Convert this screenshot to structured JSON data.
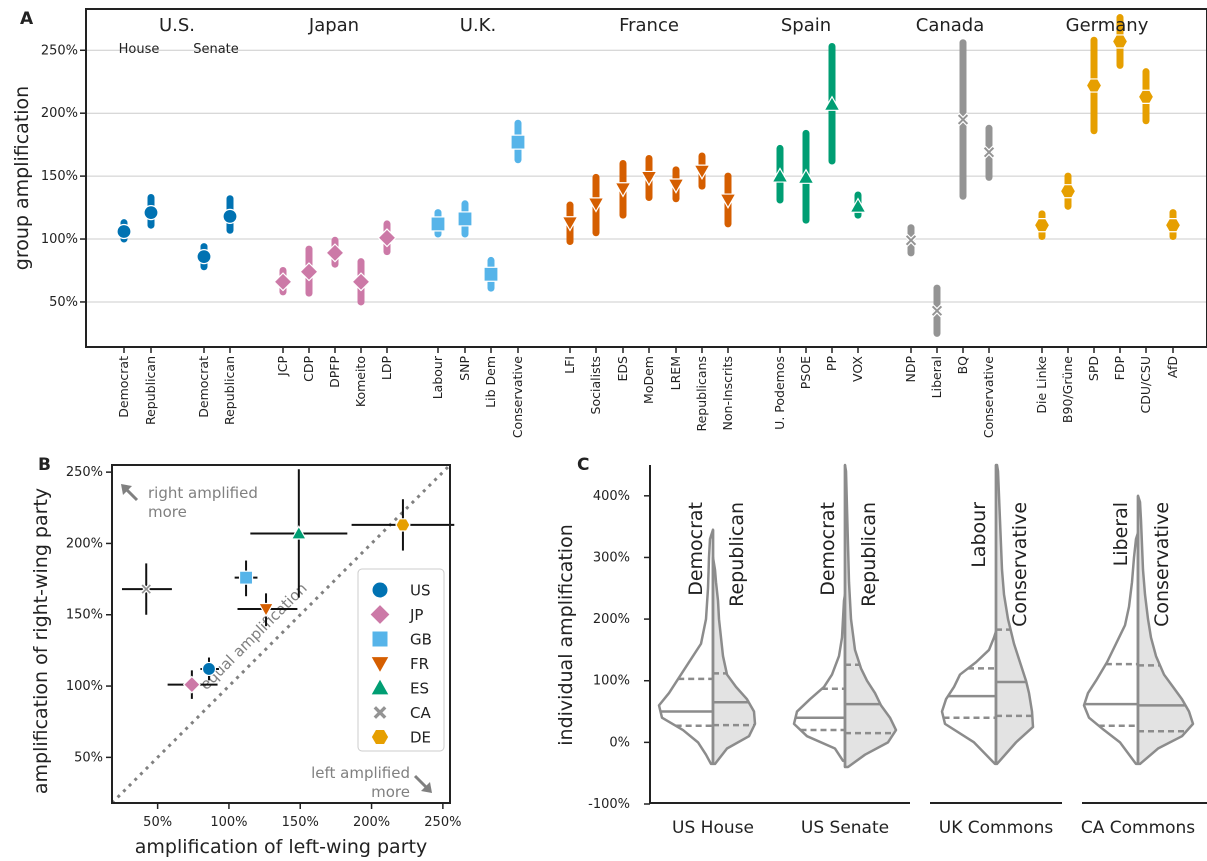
{
  "colors": {
    "US": "#0072b2",
    "JP": "#cc79a7",
    "GB": "#56b4e9",
    "FR": "#d55e00",
    "ES": "#009e73",
    "CA": "#949494",
    "DE": "#e69f00",
    "axis": "#222222",
    "grid": "#cccccc",
    "muted": "#808080"
  },
  "chart_data": [
    {
      "panel": "A",
      "type": "scatter",
      "ylabel": "group amplification",
      "ylim": [
        15,
        282
      ],
      "yticks": [
        50,
        100,
        150,
        200,
        250
      ],
      "ytick_labels": [
        "50%",
        "100%",
        "150%",
        "200%",
        "250%"
      ],
      "grid": true,
      "country_labels": [
        "U.S.",
        "Japan",
        "U.K.",
        "France",
        "Spain",
        "Canada",
        "Germany"
      ],
      "chamber_labels": [
        "House",
        "Senate"
      ],
      "groups": [
        {
          "country": "US",
          "parties": [
            {
              "label": "Democrat",
              "value": 106,
              "low": 100,
              "high": 113
            },
            {
              "label": "Republican",
              "value": 121,
              "low": 111,
              "high": 133
            }
          ]
        },
        {
          "country": "US",
          "parties": [
            {
              "label": "Democrat",
              "value": 86,
              "low": 78,
              "high": 94
            },
            {
              "label": "Republican",
              "value": 118,
              "low": 107,
              "high": 132
            }
          ]
        },
        {
          "country": "JP",
          "parties": [
            {
              "label": "JCP",
              "value": 66,
              "low": 58,
              "high": 75
            },
            {
              "label": "CDP",
              "value": 74,
              "low": 57,
              "high": 92
            },
            {
              "label": "DPFP",
              "value": 89,
              "low": 80,
              "high": 99
            },
            {
              "label": "Komeito",
              "value": 66,
              "low": 50,
              "high": 82
            },
            {
              "label": "LDP",
              "value": 101,
              "low": 90,
              "high": 112
            }
          ]
        },
        {
          "country": "GB",
          "parties": [
            {
              "label": "Labour",
              "value": 112,
              "low": 104,
              "high": 121
            },
            {
              "label": "SNP",
              "value": 116,
              "low": 104,
              "high": 128
            },
            {
              "label": "Lib Dem",
              "value": 72,
              "low": 61,
              "high": 83
            },
            {
              "label": "Conservative",
              "value": 177,
              "low": 163,
              "high": 192
            }
          ]
        },
        {
          "country": "FR",
          "parties": [
            {
              "label": "LFI",
              "value": 113,
              "low": 98,
              "high": 127
            },
            {
              "label": "Socialists",
              "value": 128,
              "low": 105,
              "high": 149
            },
            {
              "label": "EDS",
              "value": 140,
              "low": 119,
              "high": 160
            },
            {
              "label": "MoDem",
              "value": 149,
              "low": 133,
              "high": 164
            },
            {
              "label": "LREM",
              "value": 143,
              "low": 132,
              "high": 155
            },
            {
              "label": "Republicans",
              "value": 154,
              "low": 142,
              "high": 166
            },
            {
              "label": "Non-Inscrits",
              "value": 131,
              "low": 112,
              "high": 150
            }
          ]
        },
        {
          "country": "ES",
          "parties": [
            {
              "label": "U. Podemos",
              "value": 150,
              "low": 131,
              "high": 172
            },
            {
              "label": "PSOE",
              "value": 149,
              "low": 115,
              "high": 184
            },
            {
              "label": "PP",
              "value": 207,
              "low": 162,
              "high": 253
            },
            {
              "label": "VOX",
              "value": 126,
              "low": 119,
              "high": 135
            }
          ]
        },
        {
          "country": "CA",
          "parties": [
            {
              "label": "NDP",
              "value": 99,
              "low": 89,
              "high": 109
            },
            {
              "label": "Liberal",
              "value": 43,
              "low": 25,
              "high": 61
            },
            {
              "label": "BQ",
              "value": 195,
              "low": 134,
              "high": 256
            },
            {
              "label": "Conservative",
              "value": 169,
              "low": 149,
              "high": 188
            }
          ]
        },
        {
          "country": "DE",
          "parties": [
            {
              "label": "Die Linke",
              "value": 111,
              "low": 102,
              "high": 120
            },
            {
              "label": "B90/Grüne",
              "value": 138,
              "low": 126,
              "high": 150
            },
            {
              "label": "SPD",
              "value": 222,
              "low": 186,
              "high": 258
            },
            {
              "label": "FDP",
              "value": 257,
              "low": 238,
              "high": 276
            },
            {
              "label": "CDU/CSU",
              "value": 213,
              "low": 194,
              "high": 233
            },
            {
              "label": "AfD",
              "value": 111,
              "low": 102,
              "high": 121
            }
          ]
        }
      ]
    },
    {
      "panel": "B",
      "type": "scatter",
      "xlabel": "amplification of left-wing party",
      "ylabel": "amplification of right-wing party",
      "xlim": [
        18,
        255
      ],
      "ylim": [
        18,
        255
      ],
      "ticks": [
        50,
        100,
        150,
        200,
        250
      ],
      "tick_labels": [
        "50%",
        "100%",
        "150%",
        "200%",
        "250%"
      ],
      "diagonal_label": "equal amplification",
      "top_annotation": [
        "right amplified",
        "more"
      ],
      "bottom_annotation": [
        "left amplified",
        "more"
      ],
      "points": [
        {
          "country": "US",
          "x": 86,
          "y": 112,
          "xerr": [
            80,
            93
          ],
          "yerr": [
            104,
            120
          ]
        },
        {
          "country": "JP",
          "x": 74,
          "y": 101,
          "xerr": [
            57,
            92
          ],
          "yerr": [
            91,
            111
          ]
        },
        {
          "country": "GB",
          "x": 112,
          "y": 176,
          "xerr": [
            104,
            120
          ],
          "yerr": [
            163,
            188
          ]
        },
        {
          "country": "FR",
          "x": 126,
          "y": 154,
          "xerr": [
            106,
            148
          ],
          "yerr": [
            142,
            165
          ]
        },
        {
          "country": "ES",
          "x": 149,
          "y": 207,
          "xerr": [
            115,
            183
          ],
          "yerr": [
            162,
            252
          ]
        },
        {
          "country": "CA",
          "x": 42,
          "y": 168,
          "xerr": [
            25,
            60
          ],
          "yerr": [
            150,
            186
          ]
        },
        {
          "country": "DE",
          "x": 222,
          "y": 213,
          "xerr": [
            186,
            258
          ],
          "yerr": [
            195,
            231
          ]
        }
      ],
      "legend": [
        "US",
        "JP",
        "GB",
        "FR",
        "ES",
        "CA",
        "DE"
      ],
      "legend_position": "center-right"
    },
    {
      "panel": "C",
      "type": "violin",
      "ylabel": "individual amplification",
      "ylim": [
        -100,
        450
      ],
      "yticks": [
        -100,
        0,
        100,
        200,
        300,
        400
      ],
      "ytick_labels": [
        "-100%",
        "0%",
        "100%",
        "200%",
        "300%",
        "400%"
      ],
      "groups": [
        {
          "label": "US House",
          "left": {
            "party": "Democrat",
            "median": 50,
            "q1": 27,
            "q3": 103
          },
          "right": {
            "party": "Republican",
            "median": 65,
            "q1": 28,
            "q3": 112
          }
        },
        {
          "label": "US Senate",
          "left": {
            "party": "Democrat",
            "median": 40,
            "q1": 20,
            "q3": 87
          },
          "right": {
            "party": "Republican",
            "median": 62,
            "q1": 15,
            "q3": 126
          }
        },
        {
          "label": "UK Commons",
          "left": {
            "party": "Labour",
            "median": 75,
            "q1": 40,
            "q3": 120
          },
          "right": {
            "party": "Conservative",
            "median": 98,
            "q1": 43,
            "q3": 183
          }
        },
        {
          "label": "CA Commons",
          "left": {
            "party": "Liberal",
            "median": 62,
            "q1": 27,
            "q3": 127
          },
          "right": {
            "party": "Conservative",
            "median": 60,
            "q1": 18,
            "q3": 125
          }
        }
      ]
    }
  ],
  "panel_labels": [
    "A",
    "B",
    "C"
  ]
}
